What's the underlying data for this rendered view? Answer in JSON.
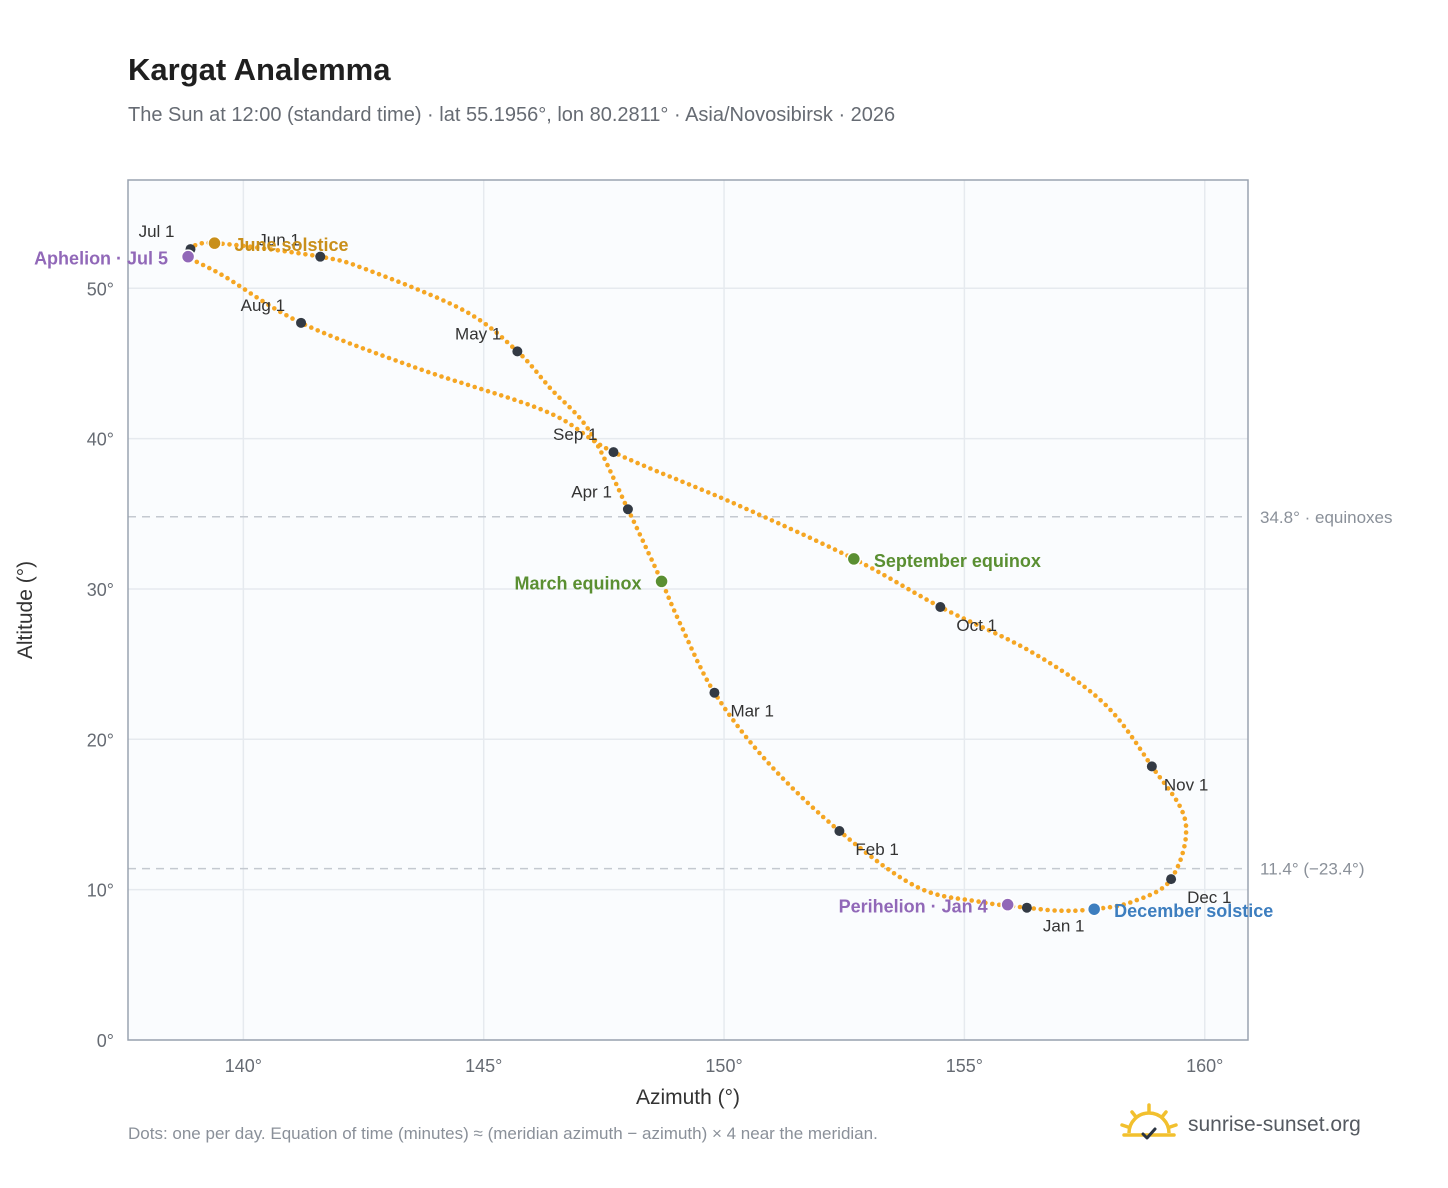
{
  "header": {
    "title": "Kargat Analemma",
    "subtitle": "The Sun at 12:00 (standard time) · lat 55.1956°, lon 80.2811° · Asia/Novosibirsk · 2026"
  },
  "footer": {
    "note": "Dots: one per day. Equation of time (minutes) ≈ (meridian azimuth − azimuth) × 4 near the meridian.",
    "brand": "sunrise-sunset.org",
    "brand_icon": "sun-logo-icon"
  },
  "colors": {
    "path": "#f5a623",
    "month": "#333a44",
    "june": "#c98f1a",
    "equinox": "#5a8f32",
    "december": "#3d7ebf",
    "apsis": "#9168b8",
    "grid": "#e6eaef",
    "plot_bg": "#fafcfe",
    "frame": "#9aa3b0",
    "ref_line": "#c4c9d0"
  },
  "chart_data": {
    "type": "scatter",
    "title": "Kargat Analemma",
    "xlabel": "Azimuth (°)",
    "ylabel": "Altitude (°)",
    "xlim": [
      137.6,
      160.9
    ],
    "ylim": [
      0,
      57.2
    ],
    "grid": true,
    "x_ticks": [
      {
        "value": 140,
        "label": "140°"
      },
      {
        "value": 145,
        "label": "145°"
      },
      {
        "value": 150,
        "label": "150°"
      },
      {
        "value": 155,
        "label": "155°"
      },
      {
        "value": 160,
        "label": "160°"
      }
    ],
    "y_ticks": [
      {
        "value": 0,
        "label": "0°"
      },
      {
        "value": 10,
        "label": "10°"
      },
      {
        "value": 20,
        "label": "20°"
      },
      {
        "value": 30,
        "label": "30°"
      },
      {
        "value": 40,
        "label": "40°"
      },
      {
        "value": 50,
        "label": "50°"
      }
    ],
    "path_knots": [
      [
        156.3,
        8.8
      ],
      [
        155.3,
        9.2
      ],
      [
        154.0,
        10.2
      ],
      [
        152.4,
        13.9
      ],
      [
        150.9,
        18.5
      ],
      [
        149.8,
        23.1
      ],
      [
        149.1,
        27.6
      ],
      [
        148.7,
        30.5
      ],
      [
        148.0,
        35.3
      ],
      [
        147.2,
        40.5
      ],
      [
        146.4,
        43.3
      ],
      [
        145.7,
        45.8
      ],
      [
        144.6,
        48.5
      ],
      [
        142.6,
        51.2
      ],
      [
        141.6,
        52.1
      ],
      [
        139.4,
        53.0
      ],
      [
        138.9,
        52.6
      ],
      [
        138.85,
        52.1
      ],
      [
        139.6,
        50.8
      ],
      [
        141.2,
        47.7
      ],
      [
        143.6,
        44.7
      ],
      [
        146.3,
        41.8
      ],
      [
        147.7,
        39.1
      ],
      [
        150.2,
        35.7
      ],
      [
        152.7,
        32.0
      ],
      [
        154.5,
        28.8
      ],
      [
        156.4,
        25.8
      ],
      [
        157.9,
        22.4
      ],
      [
        158.9,
        18.2
      ],
      [
        159.6,
        14.5
      ],
      [
        159.3,
        10.7
      ],
      [
        158.5,
        9.2
      ],
      [
        157.7,
        8.7
      ],
      [
        157.0,
        8.6
      ],
      [
        156.3,
        8.8
      ]
    ],
    "months": [
      {
        "label": "Jan 1",
        "x": 156.3,
        "y": 8.8
      },
      {
        "label": "Feb 1",
        "x": 152.4,
        "y": 13.9
      },
      {
        "label": "Mar 1",
        "x": 149.8,
        "y": 23.1
      },
      {
        "label": "Apr 1",
        "x": 148.0,
        "y": 35.3
      },
      {
        "label": "May 1",
        "x": 145.7,
        "y": 45.8
      },
      {
        "label": "Jun 1",
        "x": 141.6,
        "y": 52.1
      },
      {
        "label": "Jul 1",
        "x": 138.9,
        "y": 52.6
      },
      {
        "label": "Aug 1",
        "x": 141.2,
        "y": 47.7
      },
      {
        "label": "Sep 1",
        "x": 147.7,
        "y": 39.1
      },
      {
        "label": "Oct 1",
        "x": 154.5,
        "y": 28.8
      },
      {
        "label": "Nov 1",
        "x": 158.9,
        "y": 18.2
      },
      {
        "label": "Dec 1",
        "x": 159.3,
        "y": 10.7
      }
    ],
    "events": [
      {
        "label": "June solstice",
        "x": 139.4,
        "y": 53.0,
        "color": "june"
      },
      {
        "label": "March equinox",
        "x": 148.7,
        "y": 30.5,
        "color": "equinox"
      },
      {
        "label": "September equinox",
        "x": 152.7,
        "y": 32.0,
        "color": "equinox"
      },
      {
        "label": "December solstice",
        "x": 157.7,
        "y": 8.7,
        "color": "december"
      },
      {
        "label": "Aphelion · Jul 5",
        "x": 138.85,
        "y": 52.1,
        "color": "apsis"
      },
      {
        "label": "Perihelion · Jan 4",
        "x": 155.9,
        "y": 9.0,
        "color": "apsis"
      }
    ],
    "reference_lines": [
      {
        "y": 34.8,
        "label": "34.8° · equinoxes"
      },
      {
        "y": 11.4,
        "label": "11.4° (−23.4°)"
      }
    ]
  }
}
